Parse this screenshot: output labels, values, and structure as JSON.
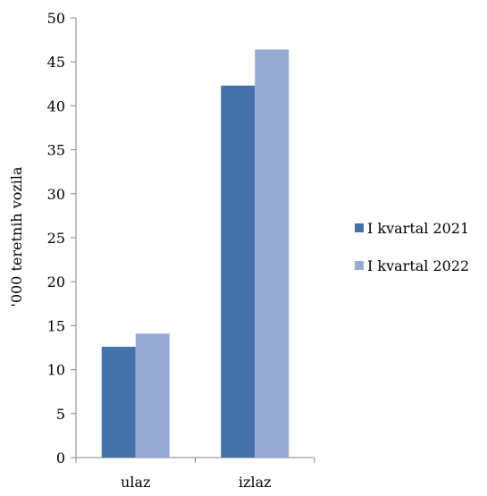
{
  "chart_data": {
    "type": "bar",
    "title": "",
    "xlabel": "",
    "ylabel": "'000 teretnih vozila",
    "ylim": [
      0,
      50
    ],
    "yticks": [
      0,
      5,
      10,
      15,
      20,
      25,
      30,
      35,
      40,
      45,
      50
    ],
    "categories": [
      "ulaz",
      "izlaz"
    ],
    "series": [
      {
        "name": "I kvartal 2021",
        "values": [
          12.6,
          42.3
        ],
        "color": "#4472A8"
      },
      {
        "name": "I kvartal 2022",
        "values": [
          14.1,
          46.4
        ],
        "color": "#95ABD4"
      }
    ],
    "grid": false,
    "legend_position": "right"
  }
}
